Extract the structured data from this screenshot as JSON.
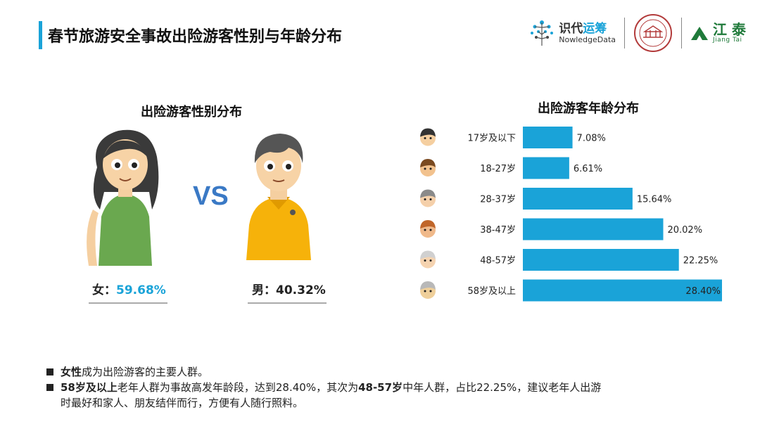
{
  "header": {
    "title": "春节旅游安全事故出险游客性别与年龄分布",
    "logo_nd_zh_a": "识代",
    "logo_nd_zh_b": "运筹",
    "logo_nd_en": "NowledgeData",
    "logo_jt_zh": "江 泰",
    "logo_jt_en": "Jiang Tai"
  },
  "gender": {
    "title": "出险游客性别分布",
    "vs": "VS",
    "female_label": "女：",
    "female_value": "59.68%",
    "male_label": "男：",
    "male_value": "40.32%"
  },
  "age": {
    "title": "出险游客年龄分布"
  },
  "chart_data": [
    {
      "type": "pie",
      "title": "出险游客性别分布",
      "categories": [
        "女",
        "男"
      ],
      "values": [
        59.68,
        40.32
      ],
      "unit": "%"
    },
    {
      "type": "bar",
      "orientation": "horizontal",
      "title": "出险游客年龄分布",
      "categories": [
        "17岁及以下",
        "18-27岁",
        "28-37岁",
        "38-47岁",
        "48-57岁",
        "58岁及以上"
      ],
      "values": [
        7.08,
        6.61,
        15.64,
        20.02,
        22.25,
        28.4
      ],
      "labels": [
        "7.08%",
        "6.61%",
        "15.64%",
        "20.02%",
        "22.25%",
        "28.40%"
      ],
      "xlim": [
        0,
        28.4
      ],
      "bar_color": "#1aa3d8",
      "grid": false
    }
  ],
  "notes": {
    "n1_bold": "女性",
    "n1_text": "成为出险游客的主要人群。",
    "n2_bold_a": "58岁及以上",
    "n2_text_a": "老年人群为事故高发年龄段，达到28.40%，其次为",
    "n2_bold_b": "48-57岁",
    "n2_text_b": "中年人群，占比22.25%，建议老年人出游",
    "n2_text_c": "时最好和家人、朋友结伴而行，方便有人随行照料。"
  },
  "colors": {
    "accent": "#1aa3d8",
    "vs": "#3a79c5",
    "female_shirt": "#6aa84f",
    "male_shirt": "#f6b20a"
  }
}
